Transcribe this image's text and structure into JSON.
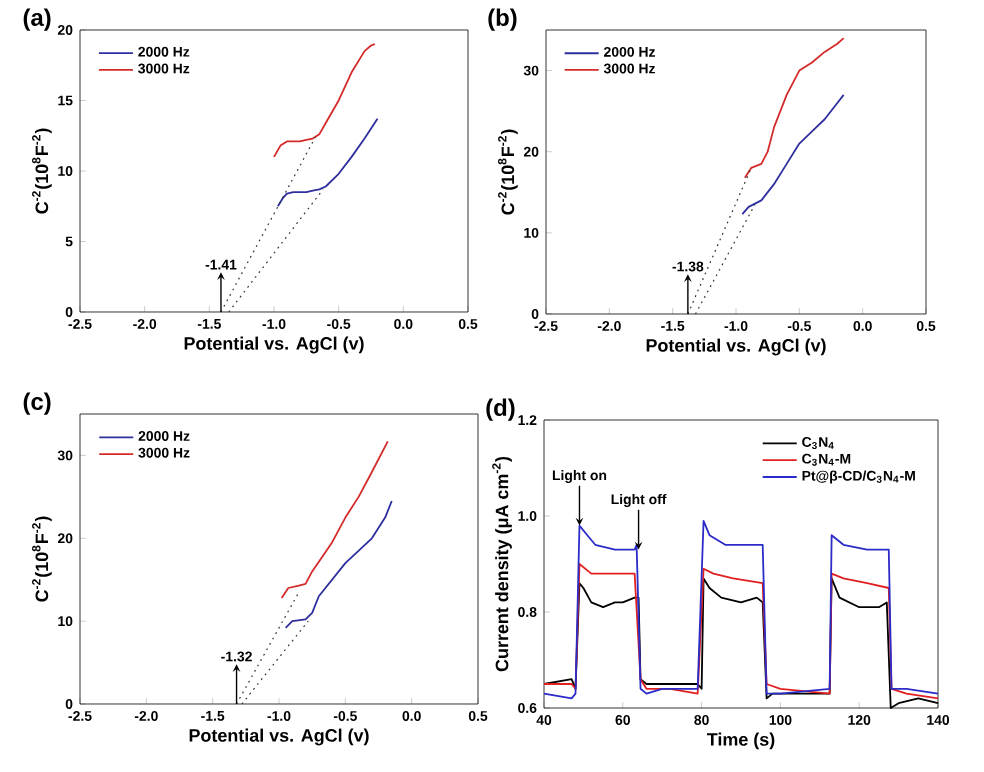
{
  "chart_data": [
    {
      "type": "line",
      "title": "(a)",
      "xlabel": "Potential vs. AgCl (v)",
      "ylabel": "C$^{-2}$(10$^{8}$F$^{-2}$)",
      "xlim": [
        -2.5,
        0.5
      ],
      "ylim": [
        0,
        20
      ],
      "xticks": [
        -2.5,
        {
          "value": -2.0,
          "label": "-2.0"
        },
        -1.5,
        {
          "value": -1.0,
          "label": "-1.0"
        },
        -0.5,
        {
          "value": 0.0,
          "label": "0.0"
        },
        0.5
      ],
      "yticks": [
        0,
        5,
        10,
        15,
        20
      ],
      "legend": "top left",
      "series": [
        {
          "name": "2000 Hz",
          "color": "#2e2e9e",
          "x": [
            -0.97,
            -0.93,
            -0.9,
            -0.85,
            -0.8,
            -0.75,
            -0.7,
            -0.65,
            -0.6,
            -0.5,
            -0.4,
            -0.3,
            -0.2
          ],
          "values": [
            7.5,
            8.1,
            8.4,
            8.5,
            8.5,
            8.5,
            8.6,
            8.7,
            8.9,
            9.8,
            11.0,
            12.3,
            13.7
          ]
        },
        {
          "name": "3000 Hz",
          "color": "#d42a2a",
          "x": [
            -1.0,
            -0.95,
            -0.9,
            -0.85,
            -0.8,
            -0.75,
            -0.7,
            -0.65,
            -0.6,
            -0.5,
            -0.4,
            -0.3,
            -0.25,
            -0.22
          ],
          "values": [
            11.0,
            11.8,
            12.1,
            12.1,
            12.1,
            12.2,
            12.3,
            12.6,
            13.4,
            15.0,
            17.0,
            18.5,
            18.9,
            19.0
          ]
        },
        {
          "type": "line",
          "line_style": "dotted",
          "color": "#333333",
          "x": [
            -1.41,
            -0.68
          ],
          "values": [
            0,
            12.4
          ]
        },
        {
          "type": "line",
          "line_style": "dotted",
          "color": "#333333",
          "x": [
            -1.35,
            -0.62
          ],
          "values": [
            0,
            8.7
          ]
        }
      ],
      "annotations": [
        {
          "text": "-1.41",
          "x": -1.41,
          "y": 0
        }
      ]
    },
    {
      "type": "line",
      "title": "(b)",
      "xlabel": "Potential vs. AgCl (v)",
      "ylabel": "C$^{-2}$(10$^{8}$F$^{-2}$)",
      "xlim": [
        -2.5,
        0.5
      ],
      "ylim": [
        0,
        35
      ],
      "xticks": [
        -2.5,
        {
          "value": -2.0,
          "label": "-2.0"
        },
        -1.5,
        {
          "value": -1.0,
          "label": "-1.0"
        },
        -0.5,
        {
          "value": 0.0,
          "label": "0.0"
        },
        0.5
      ],
      "yticks": [
        0,
        10,
        20,
        30
      ],
      "legend": "top left",
      "series": [
        {
          "name": "2000 Hz",
          "color": "#2e2e9e",
          "x": [
            -0.95,
            -0.9,
            -0.85,
            -0.8,
            -0.75,
            -0.7,
            -0.6,
            -0.5,
            -0.4,
            -0.3,
            -0.2,
            -0.15
          ],
          "values": [
            12.3,
            13.2,
            13.6,
            14.0,
            15.0,
            16.0,
            18.5,
            21.0,
            22.5,
            24.0,
            26.0,
            27.0
          ]
        },
        {
          "name": "3000 Hz",
          "color": "#d42a2a",
          "x": [
            -0.93,
            -0.88,
            -0.8,
            -0.75,
            -0.7,
            -0.6,
            -0.5,
            -0.4,
            -0.3,
            -0.2,
            -0.15
          ],
          "values": [
            16.8,
            18.0,
            18.5,
            20.0,
            23.0,
            27.0,
            30.0,
            31.0,
            32.3,
            33.3,
            34.0
          ]
        },
        {
          "type": "line",
          "line_style": "dotted",
          "color": "#333333",
          "x": [
            -1.38,
            -0.88
          ],
          "values": [
            0,
            18.0
          ]
        },
        {
          "type": "line",
          "line_style": "dotted",
          "color": "#333333",
          "x": [
            -1.32,
            -0.85
          ],
          "values": [
            0,
            13.5
          ]
        }
      ],
      "annotations": [
        {
          "text": "-1.38",
          "x": -1.38,
          "y": 0
        }
      ]
    },
    {
      "type": "line",
      "title": "(c)",
      "xlabel": "Potential vs. AgCl (v)",
      "ylabel": "C$^{-2}$(10$^{8}$F$^{-2}$)",
      "xlim": [
        -2.5,
        0.5
      ],
      "ylim": [
        0,
        35
      ],
      "xticks": [
        -2.5,
        {
          "value": -2.0,
          "label": "-2.0"
        },
        -1.5,
        {
          "value": -1.0,
          "label": "-1.0"
        },
        -0.5,
        {
          "value": 0.0,
          "label": "0.0"
        },
        0.5
      ],
      "yticks": [
        0,
        10,
        20,
        30
      ],
      "legend": "top left",
      "series": [
        {
          "name": "2000 Hz",
          "color": "#2e2e9e",
          "x": [
            -0.95,
            -0.9,
            -0.85,
            -0.8,
            -0.75,
            -0.7,
            -0.6,
            -0.5,
            -0.4,
            -0.3,
            -0.2,
            -0.15
          ],
          "values": [
            9.2,
            10.0,
            10.1,
            10.2,
            11.0,
            13.0,
            15.0,
            17.0,
            18.5,
            20.0,
            22.5,
            24.5
          ]
        },
        {
          "name": "3000 Hz",
          "color": "#d42a2a",
          "x": [
            -0.98,
            -0.93,
            -0.85,
            -0.8,
            -0.75,
            -0.6,
            -0.5,
            -0.4,
            -0.3,
            -0.18
          ],
          "values": [
            12.8,
            14.0,
            14.3,
            14.5,
            16.0,
            19.5,
            22.5,
            25.0,
            28.0,
            31.7
          ]
        },
        {
          "type": "line",
          "line_style": "dotted",
          "color": "#333333",
          "x": [
            -1.32,
            -0.85
          ],
          "values": [
            0,
            13.5
          ]
        },
        {
          "type": "line",
          "line_style": "dotted",
          "color": "#333333",
          "x": [
            -1.28,
            -0.78
          ],
          "values": [
            0,
            10.0
          ]
        }
      ],
      "annotations": [
        {
          "text": "-1.32",
          "x": -1.32,
          "y": 0
        }
      ]
    },
    {
      "type": "line",
      "title": "(d)",
      "xlabel": "Time (s)",
      "ylabel": "Current density (μA cm$^{-2}$)",
      "xlim": [
        40,
        140
      ],
      "ylim": [
        0.6,
        1.2
      ],
      "xticks": [
        40,
        60,
        80,
        100,
        120,
        140
      ],
      "yticks": [
        0.6,
        0.8,
        {
          "value": 1.0,
          "label": "1.0"
        },
        1.2
      ],
      "legend": "top right",
      "series": [
        {
          "name": "C$_{3}$N$_{4}$",
          "color": "#000000",
          "x": [
            40,
            47,
            48,
            49,
            50,
            52,
            55,
            58,
            60,
            63,
            64,
            64.5,
            66,
            70,
            75,
            79,
            80,
            80.5,
            82,
            85,
            90,
            94,
            95.5,
            96.5,
            98,
            105,
            111,
            112.5,
            113,
            115,
            120,
            125,
            127,
            128,
            130,
            135,
            140
          ],
          "values": [
            0.65,
            0.66,
            0.64,
            0.86,
            0.85,
            0.82,
            0.81,
            0.82,
            0.82,
            0.83,
            0.83,
            0.66,
            0.65,
            0.65,
            0.65,
            0.65,
            0.64,
            0.87,
            0.85,
            0.83,
            0.82,
            0.83,
            0.82,
            0.62,
            0.63,
            0.63,
            0.63,
            0.63,
            0.87,
            0.83,
            0.81,
            0.81,
            0.82,
            0.6,
            0.61,
            0.62,
            0.61
          ]
        },
        {
          "name": "C$_{3}$N$_{4}$-M",
          "color": "#e02020",
          "x": [
            40,
            47,
            48,
            49,
            52,
            55,
            60,
            63,
            64.5,
            66,
            72,
            79,
            80.5,
            83,
            88,
            95.5,
            96.5,
            100,
            112.5,
            113,
            116,
            122,
            127.5,
            128.2,
            132,
            140
          ],
          "values": [
            0.65,
            0.65,
            0.64,
            0.9,
            0.88,
            0.88,
            0.88,
            0.88,
            0.66,
            0.64,
            0.64,
            0.63,
            0.89,
            0.88,
            0.87,
            0.86,
            0.65,
            0.64,
            0.63,
            0.88,
            0.87,
            0.86,
            0.85,
            0.64,
            0.63,
            0.62
          ]
        },
        {
          "name": "Pt@β-CD/C$_{3}$N$_{4}$-M",
          "color": "#2b2bc8",
          "x": [
            40,
            47,
            48,
            49,
            51,
            53,
            58,
            63,
            63.5,
            64.5,
            66,
            70,
            79,
            80.5,
            82,
            86,
            95.5,
            96.5,
            100,
            112.5,
            113,
            116,
            122,
            127.5,
            128.2,
            132,
            140
          ],
          "values": [
            0.63,
            0.62,
            0.63,
            0.98,
            0.96,
            0.94,
            0.93,
            0.93,
            0.94,
            0.64,
            0.63,
            0.64,
            0.64,
            0.99,
            0.96,
            0.94,
            0.94,
            0.63,
            0.63,
            0.64,
            0.96,
            0.94,
            0.93,
            0.93,
            0.64,
            0.64,
            0.63
          ]
        }
      ],
      "annotations": [
        {
          "text": "Light on",
          "x": 49,
          "y": 0.98
        },
        {
          "text": "Light off",
          "x": 64,
          "y": 0.93
        }
      ]
    }
  ]
}
